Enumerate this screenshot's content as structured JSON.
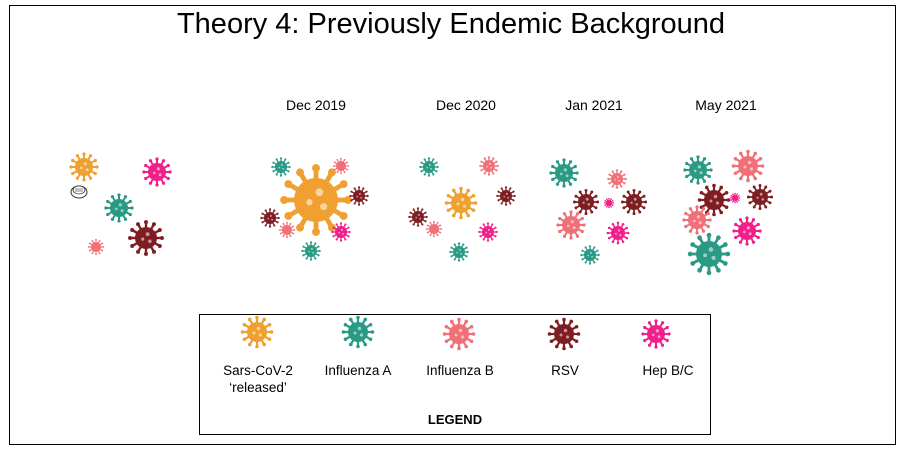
{
  "title": "Theory 4: Previously Endemic Background",
  "timeline": [
    "Dec 2019",
    "Dec 2020",
    "Jan 2021",
    "May 2021"
  ],
  "legend": {
    "title": "LEGEND",
    "items": [
      {
        "key": "sars",
        "label": "Sars-CoV-2 ‘released’",
        "color": "#F0A030"
      },
      {
        "key": "fluA",
        "label": "Influenza A",
        "color": "#2A9A85"
      },
      {
        "key": "fluB",
        "label": "Influenza B",
        "color": "#F07078"
      },
      {
        "key": "rsv",
        "label": "RSV",
        "color": "#7E1E22"
      },
      {
        "key": "hep",
        "label": "Hep B/C",
        "color": "#F0208A"
      }
    ]
  },
  "colors": {
    "sars": "#F0A030",
    "fluA": "#2A9A85",
    "fluB": "#F07078",
    "rsv": "#7E1E22",
    "hep": "#F0208A"
  }
}
